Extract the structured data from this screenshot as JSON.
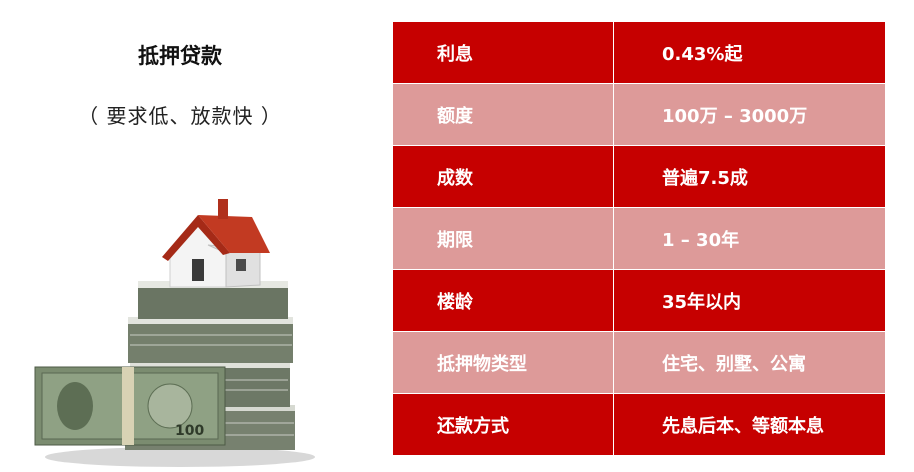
{
  "header": {
    "title": "抵押贷款",
    "subtitle": "（ 要求低、放款快 ）"
  },
  "table": {
    "rows": [
      {
        "label": "利息",
        "value": "0.43%起",
        "shade": "dark"
      },
      {
        "label": "额度",
        "value": "100万 – 3000万",
        "shade": "light"
      },
      {
        "label": "成数",
        "value": "普遍7.5成",
        "shade": "dark"
      },
      {
        "label": "期限",
        "value": "1 – 30年",
        "shade": "light"
      },
      {
        "label": "楼龄",
        "value": "35年以内",
        "shade": "dark"
      },
      {
        "label": "抵押物类型",
        "value": "住宅、别墅、公寓",
        "shade": "light"
      },
      {
        "label": "还款方式",
        "value": "先息后本、等额本息",
        "shade": "dark"
      }
    ]
  },
  "illustration": {
    "icon": "house-on-money-icon",
    "note_text": "100"
  },
  "colors": {
    "dark_row": "#c60000",
    "light_row": "#dd9a99",
    "roof": "#b8331e",
    "money_green": "#6f8a62"
  }
}
